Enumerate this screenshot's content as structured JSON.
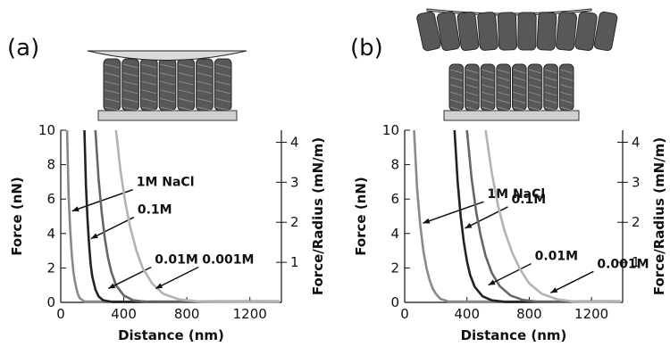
{
  "chart_data": [
    {
      "type": "line",
      "panel_label": "(a)",
      "xlabel": "Distance (nm)",
      "ylabel": "Force (nN)",
      "ylabel_right": "Force/Radius (mN/m)",
      "xlim": [
        0,
        1400
      ],
      "ylim": [
        0,
        10
      ],
      "ylim_right": [
        0,
        4.3
      ],
      "x_ticks": [
        0,
        400,
        800,
        1200
      ],
      "y_ticks": [
        0,
        2,
        4,
        6,
        8,
        10
      ],
      "y_ticks_right": [
        1,
        2,
        3,
        4
      ],
      "grid": false,
      "illustration": "polymer-brush-single",
      "series": [
        {
          "name": "1M NaCl",
          "color": "#8a8a8a",
          "x": [
            40,
            50,
            60,
            70,
            80,
            90,
            100,
            110,
            120,
            150
          ],
          "y": [
            10,
            6.2,
            4.2,
            2.8,
            1.8,
            1.2,
            0.8,
            0.45,
            0.25,
            0.05
          ],
          "label_at": [
            55,
            5.2
          ]
        },
        {
          "name": "0.1M",
          "color": "#222222",
          "x": [
            150,
            160,
            170,
            180,
            190,
            200,
            220,
            240,
            270,
            330
          ],
          "y": [
            10,
            6.8,
            4.8,
            3.3,
            2.2,
            1.5,
            0.75,
            0.35,
            0.12,
            0.02
          ],
          "label_at": [
            175,
            3.6
          ]
        },
        {
          "name": "0.01M",
          "color": "#666666",
          "x": [
            220,
            240,
            260,
            280,
            300,
            320,
            350,
            400,
            460,
            550
          ],
          "y": [
            10,
            7.2,
            5.2,
            3.7,
            2.6,
            1.8,
            1.0,
            0.4,
            0.12,
            0.02
          ],
          "label_at": [
            285,
            0.7
          ]
        },
        {
          "name": "0.001M",
          "color": "#b3b3b3",
          "x": [
            350,
            380,
            410,
            440,
            480,
            520,
            580,
            650,
            750,
            900
          ],
          "y": [
            10,
            7.6,
            5.8,
            4.4,
            3.0,
            2.0,
            1.1,
            0.5,
            0.17,
            0.03
          ],
          "label_at": [
            585,
            0.7
          ]
        }
      ]
    },
    {
      "type": "line",
      "panel_label": "(b)",
      "xlabel": "Distance (nm)",
      "ylabel": "Force (nN)",
      "ylabel_right": "Force/Radius (mN/m)",
      "xlim": [
        0,
        1400
      ],
      "ylim": [
        0,
        10
      ],
      "ylim_right": [
        0,
        4.3
      ],
      "x_ticks": [
        0,
        400,
        800,
        1200
      ],
      "y_ticks": [
        0,
        2,
        4,
        6,
        8,
        10
      ],
      "y_ticks_right": [
        1,
        2,
        3,
        4
      ],
      "grid": false,
      "illustration": "polymer-brush-double",
      "series": [
        {
          "name": "1M NaCl",
          "color": "#8a8a8a",
          "x": [
            60,
            80,
            100,
            120,
            140,
            160,
            180,
            200,
            230,
            280
          ],
          "y": [
            10,
            6.6,
            4.5,
            3.0,
            2.0,
            1.3,
            0.8,
            0.5,
            0.2,
            0.05
          ],
          "label_at": [
            100,
            4.5
          ]
        },
        {
          "name": "0.1M",
          "color": "#222222",
          "x": [
            320,
            340,
            360,
            380,
            400,
            420,
            450,
            500,
            560,
            650
          ],
          "y": [
            10,
            7.0,
            5.0,
            3.5,
            2.4,
            1.6,
            0.9,
            0.35,
            0.12,
            0.02
          ],
          "label_at": [
            370,
            4.2
          ]
        },
        {
          "name": "0.01M",
          "color": "#666666",
          "x": [
            400,
            430,
            460,
            490,
            520,
            560,
            610,
            680,
            760,
            860
          ],
          "y": [
            10,
            7.2,
            5.2,
            3.8,
            2.7,
            1.7,
            0.95,
            0.4,
            0.14,
            0.03
          ],
          "label_at": [
            520,
            0.9
          ]
        },
        {
          "name": "0.001M",
          "color": "#b3b3b3",
          "x": [
            520,
            560,
            600,
            640,
            690,
            740,
            800,
            880,
            980,
            1100
          ],
          "y": [
            10,
            7.5,
            5.6,
            4.2,
            2.9,
            1.95,
            1.1,
            0.5,
            0.18,
            0.03
          ],
          "label_at": [
            920,
            0.45
          ]
        }
      ]
    }
  ]
}
